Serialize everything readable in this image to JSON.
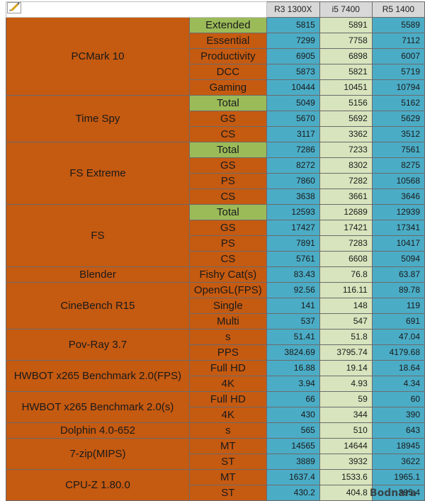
{
  "columns": [
    "R3 1300X",
    "i5 7400",
    "R5 1400"
  ],
  "groups": [
    {
      "name": "PCMark 10",
      "rows": [
        {
          "label": "Extended",
          "highlight": true,
          "values": [
            "5815",
            "5891",
            "5589"
          ]
        },
        {
          "label": "Essential",
          "values": [
            "7299",
            "7758",
            "7112"
          ]
        },
        {
          "label": "Productivity",
          "values": [
            "6905",
            "6898",
            "6007"
          ]
        },
        {
          "label": "DCC",
          "values": [
            "5873",
            "5821",
            "5719"
          ]
        },
        {
          "label": "Gaming",
          "values": [
            "10444",
            "10451",
            "10794"
          ]
        }
      ]
    },
    {
      "name": "Time Spy",
      "rows": [
        {
          "label": "Total",
          "highlight": true,
          "values": [
            "5049",
            "5156",
            "5162"
          ]
        },
        {
          "label": "GS",
          "values": [
            "5670",
            "5692",
            "5629"
          ]
        },
        {
          "label": "CS",
          "values": [
            "3117",
            "3362",
            "3512"
          ]
        }
      ]
    },
    {
      "name": "FS Extreme",
      "rows": [
        {
          "label": "Total",
          "highlight": true,
          "values": [
            "7286",
            "7233",
            "7561"
          ]
        },
        {
          "label": "GS",
          "values": [
            "8272",
            "8302",
            "8275"
          ]
        },
        {
          "label": "PS",
          "values": [
            "7860",
            "7282",
            "10568"
          ]
        },
        {
          "label": "CS",
          "values": [
            "3638",
            "3661",
            "3646"
          ]
        }
      ]
    },
    {
      "name": "FS",
      "rows": [
        {
          "label": "Total",
          "highlight": true,
          "values": [
            "12593",
            "12689",
            "12939"
          ]
        },
        {
          "label": "GS",
          "values": [
            "17427",
            "17421",
            "17341"
          ]
        },
        {
          "label": "PS",
          "values": [
            "7891",
            "7283",
            "10417"
          ]
        },
        {
          "label": "CS",
          "values": [
            "5761",
            "6608",
            "5094"
          ]
        }
      ]
    },
    {
      "name": "Blender",
      "rows": [
        {
          "label": "Fishy Cat(s)",
          "values": [
            "83.43",
            "76.8",
            "63.87"
          ]
        }
      ]
    },
    {
      "name": "CineBench R15",
      "rows": [
        {
          "label": "OpenGL(FPS)",
          "values": [
            "92.56",
            "116.11",
            "89.78"
          ]
        },
        {
          "label": "Single",
          "values": [
            "141",
            "148",
            "119"
          ]
        },
        {
          "label": "Multi",
          "values": [
            "537",
            "547",
            "691"
          ]
        }
      ]
    },
    {
      "name": "Pov-Ray 3.7",
      "rows": [
        {
          "label": "s",
          "values": [
            "51.41",
            "51.8",
            "47.04"
          ]
        },
        {
          "label": "PPS",
          "values": [
            "3824.69",
            "3795.74",
            "4179.68"
          ]
        }
      ]
    },
    {
      "name": "HWBOT x265 Benchmark 2.0(FPS)",
      "rows": [
        {
          "label": "Full HD",
          "values": [
            "16.88",
            "19.14",
            "18.64"
          ]
        },
        {
          "label": "4K",
          "values": [
            "3.94",
            "4.93",
            "4.34"
          ]
        }
      ]
    },
    {
      "name": "HWBOT x265 Benchmark 2.0(s)",
      "rows": [
        {
          "label": "Full HD",
          "values": [
            "66",
            "59",
            "60"
          ]
        },
        {
          "label": "4K",
          "values": [
            "430",
            "344",
            "390"
          ]
        }
      ]
    },
    {
      "name": "Dolphin 4.0-652",
      "rows": [
        {
          "label": "s",
          "values": [
            "565",
            "510",
            "643"
          ]
        }
      ]
    },
    {
      "name": "7-zip(MIPS)",
      "rows": [
        {
          "label": "MT",
          "values": [
            "14565",
            "14644",
            "18945"
          ]
        },
        {
          "label": "ST",
          "values": [
            "3889",
            "3932",
            "3622"
          ]
        }
      ]
    },
    {
      "name": "CPU-Z 1.80.0",
      "rows": [
        {
          "label": "MT",
          "values": [
            "1637.4",
            "1533.6",
            "1965.1"
          ]
        },
        {
          "label": "ST",
          "values": [
            "430.2",
            "404.8",
            "395.4"
          ]
        }
      ]
    }
  ],
  "watermark": "Bodnara",
  "colors": {
    "benchmark": "#c55a11",
    "highlight": "#9bbb59",
    "col1": "#4bacc6",
    "col2": "#d7e4bd",
    "col3": "#4bacc6",
    "header": "#d8d8d8"
  },
  "icons": {
    "corner": "pencil-broom-icon"
  }
}
